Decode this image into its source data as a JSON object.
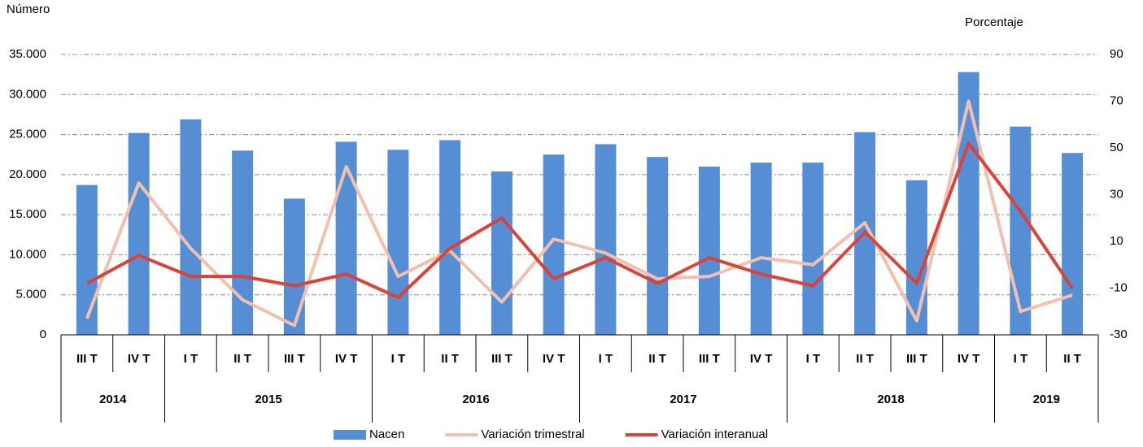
{
  "chart_data": {
    "type": "bar_line",
    "y_label": "Número",
    "y2_label": "Porcentaje",
    "categories": [
      "III T",
      "IV T",
      "I T",
      "II T",
      "III T",
      "IV T",
      "I T",
      "II T",
      "III T",
      "IV T",
      "I T",
      "II T",
      "III T",
      "IV T",
      "I T",
      "II T",
      "III T",
      "IV T",
      "I T",
      "II T"
    ],
    "groups": [
      {
        "name": "2014",
        "count": 2
      },
      {
        "name": "2015",
        "count": 4
      },
      {
        "name": "2016",
        "count": 4
      },
      {
        "name": "2017",
        "count": 4
      },
      {
        "name": "2018",
        "count": 4
      },
      {
        "name": "2019",
        "count": 2
      }
    ],
    "series": [
      {
        "name": "Nacen",
        "type": "bar",
        "color": "#558ed5",
        "values": [
          18700,
          25200,
          26900,
          23000,
          17000,
          24100,
          23100,
          24300,
          20400,
          22500,
          23800,
          22200,
          21000,
          21500,
          21500,
          25300,
          19300,
          32800,
          26000,
          22700
        ]
      },
      {
        "name": "Variación trimestral",
        "type": "line",
        "axis": "y2",
        "color": "#f2c0ae",
        "values": [
          -23,
          35,
          7,
          -15,
          -26,
          42,
          -5,
          6,
          -16,
          11,
          5,
          -6,
          -5,
          3,
          0,
          18,
          -24,
          70,
          -20,
          -13
        ]
      },
      {
        "name": "Variación interanual",
        "type": "line",
        "axis": "y2",
        "color": "#d9443a",
        "values": [
          -8,
          4,
          -5,
          -5,
          -9,
          -4,
          -14,
          7,
          20,
          -6,
          3,
          -8,
          3,
          -4,
          -9,
          14,
          -8,
          52,
          23,
          -10
        ]
      }
    ],
    "ylim": [
      0,
      35000
    ],
    "yticks": [
      0,
      {
        "value": 5000,
        "label": "5.000"
      },
      {
        "value": 10000,
        "label": "10.000"
      },
      {
        "value": 15000,
        "label": "15.000"
      },
      {
        "value": 20000,
        "label": "20.000"
      },
      {
        "value": 25000,
        "label": "25.000"
      },
      {
        "value": 30000,
        "label": "30.000"
      },
      {
        "value": 35000,
        "label": "35.000"
      }
    ],
    "y2lim": [
      -30,
      90
    ],
    "y2ticks": [
      -30,
      -10,
      10,
      30,
      50,
      70,
      90
    ],
    "grid": true,
    "legend": "bottom"
  }
}
